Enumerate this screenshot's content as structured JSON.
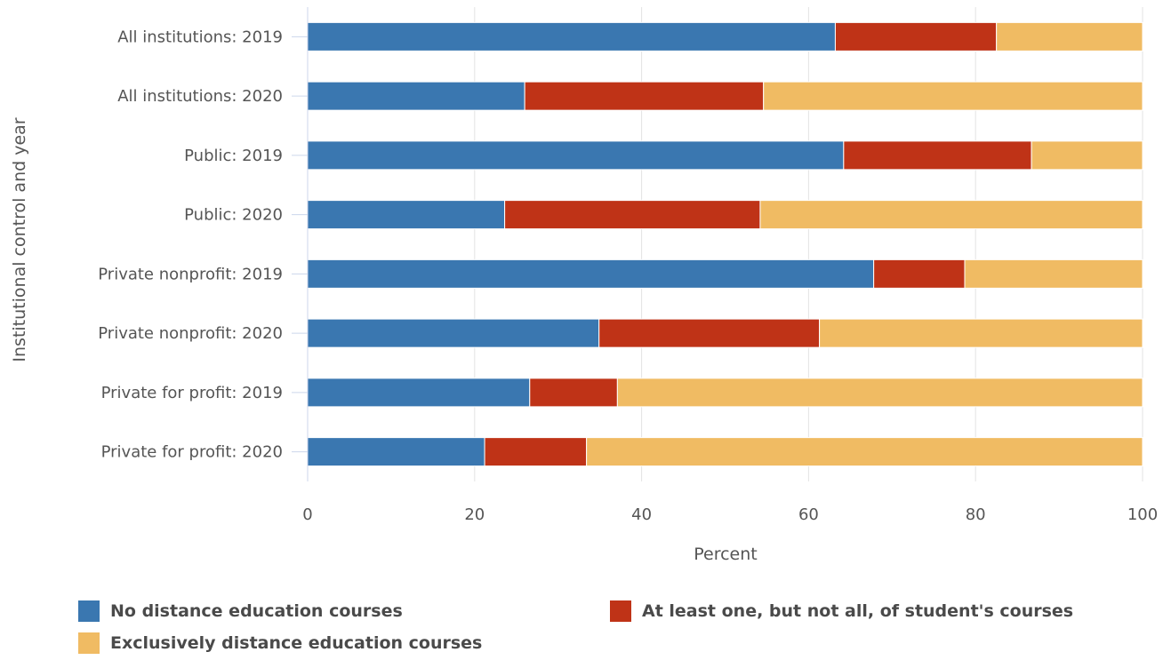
{
  "chart_data": {
    "type": "bar",
    "orientation": "horizontal",
    "stacked": true,
    "categories": [
      "All institutions: 2019",
      "All institutions: 2020",
      "Public: 2019",
      "Public: 2020",
      "Private nonprofit: 2019",
      "Private nonprofit: 2020",
      "Private for profit: 2019",
      "Private for profit: 2020"
    ],
    "series": [
      {
        "name": "No distance education courses",
        "color": "#3a77b0",
        "values": [
          63.2,
          26.0,
          64.2,
          23.6,
          67.8,
          34.9,
          26.6,
          21.2
        ]
      },
      {
        "name": "At least one, but not all, of student's courses",
        "color": "#bf3317",
        "values": [
          19.3,
          28.6,
          22.5,
          30.6,
          10.9,
          26.4,
          10.5,
          12.2
        ]
      },
      {
        "name": "Exclusively distance education courses",
        "color": "#f0bb63",
        "values": [
          17.5,
          45.4,
          13.3,
          45.8,
          21.3,
          38.7,
          62.9,
          66.6
        ]
      }
    ],
    "xlabel": "Percent",
    "ylabel": "Institutional control and year",
    "xlim": [
      0,
      100
    ],
    "xticks": [
      "0",
      "20",
      "40",
      "60",
      "80",
      "100"
    ],
    "grid": true,
    "legend_position": "bottom"
  }
}
